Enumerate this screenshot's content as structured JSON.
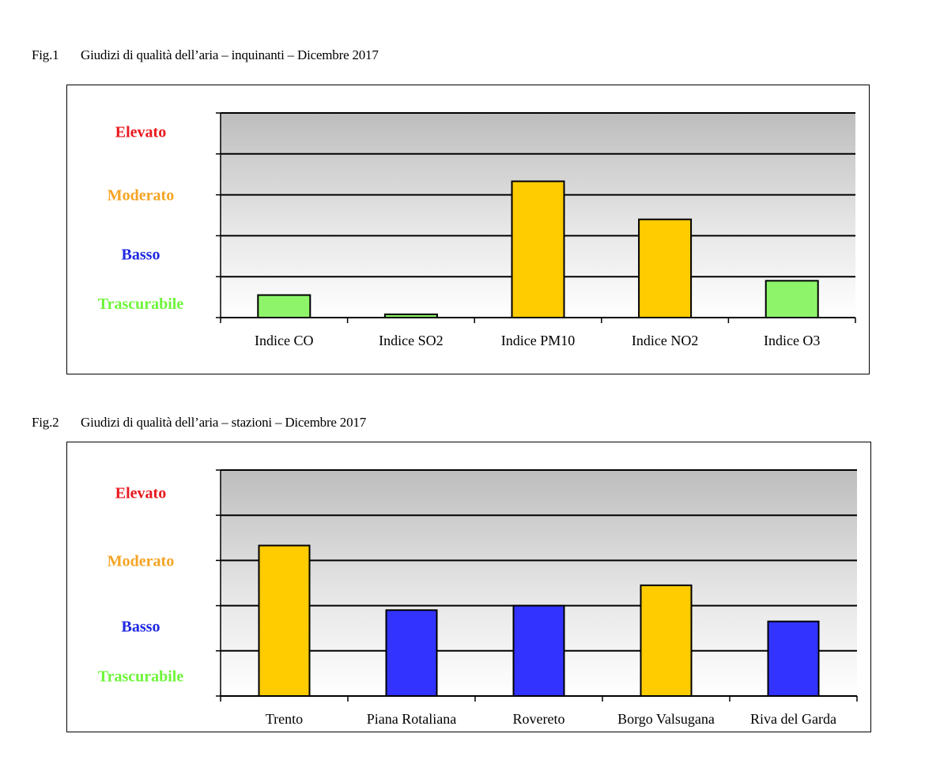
{
  "captions": {
    "fig1_num": "Fig.1",
    "fig1_text": "Giudizi di qualità dell’aria – inquinanti – Dicembre 2017",
    "fig2_num": "Fig.2",
    "fig2_text": "Giudizi di qualità dell’aria – stazioni – Dicembre 2017"
  },
  "colors": {
    "elevato": "#e8191e",
    "moderato": "#f4a424",
    "basso": "#1f28e0",
    "trascurabile": "#6ef53a",
    "bar_green": "#8ef56a",
    "bar_yellow": "#ffcc00",
    "bar_blue": "#3333ff"
  },
  "chart_data": [
    {
      "type": "bar",
      "title": "",
      "levels": [
        "Trascurabile",
        "Basso",
        "Moderato",
        "Elevato"
      ],
      "level_colors": [
        "trascurabile",
        "basso",
        "moderato",
        "elevato"
      ],
      "ylim": [
        0,
        5
      ],
      "categories": [
        "Indice CO",
        "Indice SO2",
        "Indice PM10",
        "Indice NO2",
        "Indice O3"
      ],
      "values": [
        0.55,
        0.08,
        3.33,
        2.4,
        0.9
      ],
      "bar_colors": [
        "bar_green",
        "bar_green",
        "bar_yellow",
        "bar_yellow",
        "bar_green"
      ]
    },
    {
      "type": "bar",
      "title": "",
      "levels": [
        "Trascurabile",
        "Basso",
        "Moderato",
        "Elevato"
      ],
      "level_colors": [
        "trascurabile",
        "basso",
        "moderato",
        "elevato"
      ],
      "ylim": [
        0,
        5
      ],
      "categories": [
        "Trento",
        "Piana Rotaliana",
        "Rovereto",
        "Borgo Valsugana",
        "Riva del Garda"
      ],
      "values": [
        3.33,
        1.9,
        2.0,
        2.45,
        1.65
      ],
      "bar_colors": [
        "bar_yellow",
        "bar_blue",
        "bar_blue",
        "bar_yellow",
        "bar_blue"
      ]
    }
  ]
}
